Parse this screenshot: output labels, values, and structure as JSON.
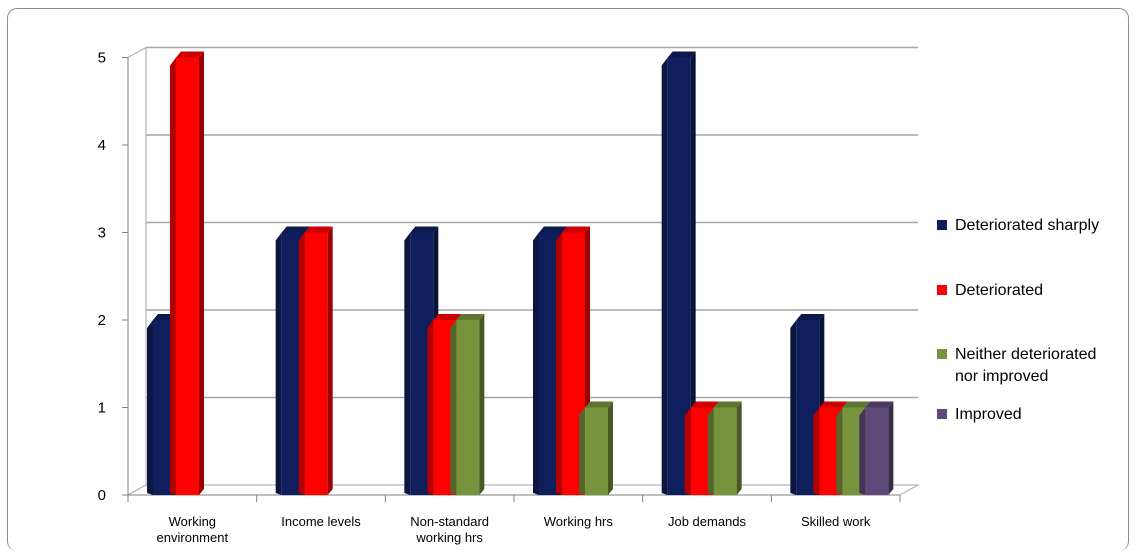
{
  "chart_data": {
    "type": "bar",
    "categories": [
      [
        "Working",
        "environment"
      ],
      [
        "Income levels"
      ],
      [
        "Non-standard",
        "working hrs"
      ],
      [
        "Working hrs"
      ],
      [
        "Job demands"
      ],
      [
        "Skilled work"
      ]
    ],
    "series": [
      {
        "name": "Deteriorated sharply",
        "color": "#0f1f5e",
        "values": [
          2,
          3,
          3,
          3,
          5,
          2
        ]
      },
      {
        "name": "Deteriorated",
        "color": "#ff0000",
        "values": [
          5,
          3,
          2,
          3,
          1,
          1
        ]
      },
      {
        "name": "Neither deteriorated nor improved",
        "name_lines": [
          "Neither deteriorated",
          "nor improved"
        ],
        "color": "#77933c",
        "values": [
          0,
          0,
          2,
          1,
          1,
          1
        ]
      },
      {
        "name": "Improved",
        "color": "#5f497a",
        "values": [
          0,
          0,
          0,
          0,
          0,
          1
        ]
      }
    ],
    "y_ticks": [
      0,
      1,
      2,
      3,
      4,
      5
    ],
    "ylim": [
      0,
      5
    ],
    "grid": true,
    "legend_position": "right",
    "style": "3d-column"
  }
}
